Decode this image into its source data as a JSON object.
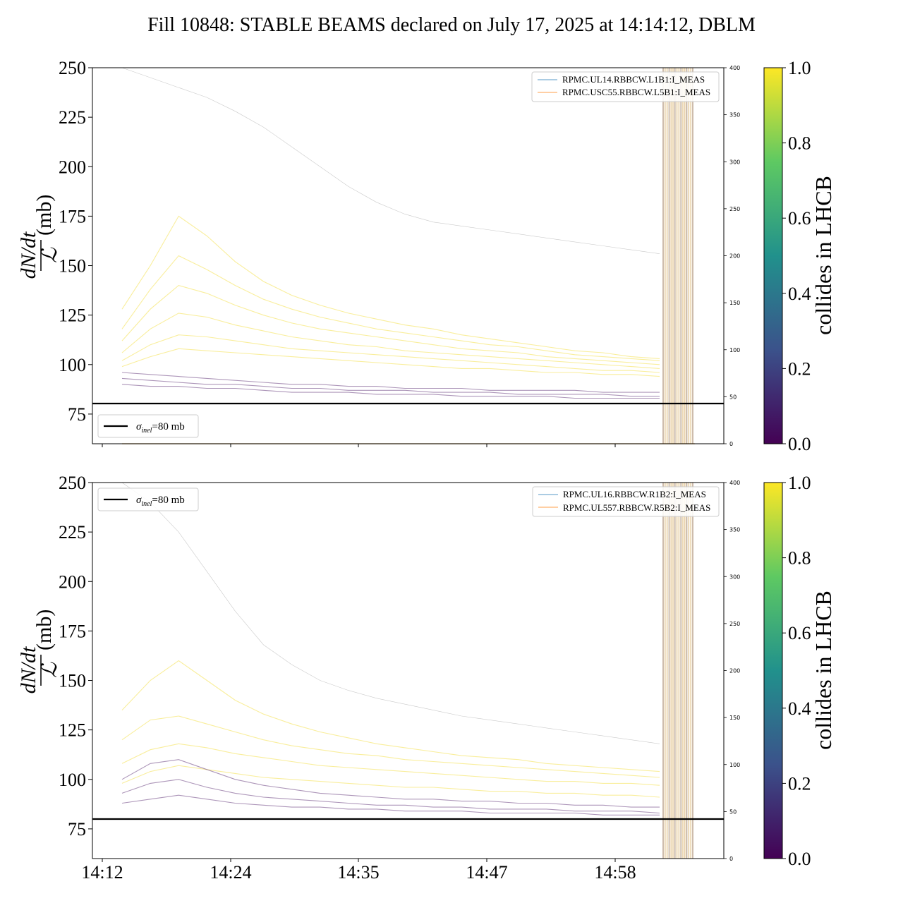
{
  "chart_data": {
    "title": "Fill 10848: STABLE BEAMS declared on July 17, 2025 at 14:14:12, DBLM",
    "x_tick_labels": [
      "14:12",
      "14:24",
      "14:35",
      "14:47",
      "14:58"
    ],
    "colorbar": {
      "label": "collides in LHCB",
      "ticks": [
        "0.0",
        "0.2",
        "0.4",
        "0.6",
        "0.8",
        "1.0"
      ],
      "colormap": [
        "#440154",
        "#3b528b",
        "#21918c",
        "#5ec962",
        "#fde725"
      ]
    },
    "panels": [
      {
        "type": "line",
        "ylabel_fraction": "dN/dt over ℒ",
        "ylabel_num": "dN/dt",
        "ylabel_den": "ℒ",
        "ylabel_unit": "(mb)",
        "ylim": [
          60,
          250
        ],
        "yticks": [
          "75",
          "100",
          "125",
          "150",
          "175",
          "200",
          "225",
          "250"
        ],
        "secondary_ylim": [
          0,
          400
        ],
        "secondary_yticks": [
          "0",
          "50",
          "100",
          "150",
          "200",
          "250",
          "300",
          "350",
          "400"
        ],
        "reference_line": {
          "value": 80,
          "label_symbol": "σ",
          "label_sub": "inel",
          "label_rest": "=80 mb"
        },
        "legend": [
          "RPMC.UL14.RBBCW.L1B1:I_MEAS",
          "RPMC.USC55.RBBCW.L5B1:I_MEAS"
        ],
        "series": [
          {
            "collides": 1,
            "values": [
              128,
              150,
              175,
              165,
              152,
              142,
              135,
              130,
              126,
              123,
              120,
              118,
              115,
              113,
              111,
              109,
              107,
              106,
              104,
              103
            ]
          },
          {
            "collides": 1,
            "values": [
              118,
              138,
              155,
              148,
              140,
              133,
              128,
              124,
              121,
              118,
              116,
              114,
              112,
              110,
              109,
              107,
              105,
              104,
              103,
              102
            ]
          },
          {
            "collides": 1,
            "values": [
              112,
              128,
              140,
              136,
              130,
              125,
              121,
              118,
              116,
              114,
              112,
              110,
              108,
              107,
              106,
              104,
              103,
              102,
              101,
              100
            ]
          },
          {
            "collides": 1,
            "values": [
              106,
              118,
              126,
              124,
              120,
              117,
              114,
              112,
              110,
              109,
              107,
              106,
              105,
              104,
              103,
              102,
              101,
              100,
              99,
              98
            ]
          },
          {
            "collides": 1,
            "values": [
              102,
              110,
              115,
              114,
              112,
              110,
              108,
              107,
              106,
              105,
              104,
              103,
              102,
              101,
              100,
              99,
              98,
              97,
              97,
              96
            ]
          },
          {
            "collides": 1,
            "values": [
              99,
              104,
              108,
              107,
              106,
              105,
              104,
              103,
              102,
              101,
              100,
              99,
              98,
              98,
              97,
              96,
              96,
              95,
              95,
              94
            ]
          },
          {
            "collides": 0,
            "values": [
              96,
              95,
              94,
              93,
              92,
              91,
              90,
              90,
              89,
              89,
              88,
              88,
              88,
              87,
              87,
              87,
              87,
              86,
              86,
              86
            ]
          },
          {
            "collides": 0,
            "values": [
              93,
              92,
              91,
              90,
              90,
              89,
              88,
              88,
              87,
              87,
              87,
              86,
              86,
              86,
              85,
              85,
              85,
              85,
              84,
              84
            ]
          },
          {
            "collides": 0,
            "values": [
              90,
              89,
              89,
              88,
              88,
              87,
              86,
              86,
              86,
              85,
              85,
              85,
              84,
              84,
              84,
              84,
              83,
              83,
              83,
              83
            ]
          },
          {
            "collides": 0.5,
            "values": [
              250,
              245,
              240,
              235,
              228,
              220,
              210,
              200,
              190,
              182,
              176,
              172,
              170,
              168,
              166,
              164,
              162,
              160,
              158,
              156
            ]
          }
        ]
      },
      {
        "type": "line",
        "ylabel_fraction": "dN/dt over ℒ",
        "ylabel_num": "dN/dt",
        "ylabel_den": "ℒ",
        "ylabel_unit": "(mb)",
        "ylim": [
          60,
          250
        ],
        "yticks": [
          "75",
          "100",
          "125",
          "150",
          "175",
          "200",
          "225",
          "250"
        ],
        "secondary_ylim": [
          0,
          400
        ],
        "secondary_yticks": [
          "0",
          "50",
          "100",
          "150",
          "200",
          "250",
          "300",
          "350",
          "400"
        ],
        "reference_line": {
          "value": 80,
          "label_symbol": "σ",
          "label_sub": "inel",
          "label_rest": "=80 mb"
        },
        "legend": [
          "RPMC.UL16.RBBCW.R1B2:I_MEAS",
          "RPMC.UL557.RBBCW.R5B2:I_MEAS"
        ],
        "series": [
          {
            "collides": 1,
            "values": [
              135,
              150,
              160,
              150,
              140,
              133,
              128,
              124,
              121,
              118,
              116,
              114,
              112,
              111,
              110,
              108,
              107,
              106,
              105,
              104
            ]
          },
          {
            "collides": 1,
            "values": [
              120,
              130,
              132,
              128,
              124,
              120,
              117,
              115,
              113,
              112,
              110,
              109,
              108,
              107,
              106,
              105,
              104,
              103,
              102,
              101
            ]
          },
          {
            "collides": 1,
            "values": [
              108,
              115,
              118,
              116,
              113,
              111,
              109,
              107,
              106,
              105,
              104,
              103,
              102,
              101,
              100,
              99,
              99,
              98,
              98,
              97
            ]
          },
          {
            "collides": 1,
            "values": [
              98,
              104,
              107,
              105,
              103,
              101,
              100,
              99,
              98,
              97,
              96,
              96,
              95,
              94,
              94,
              93,
              93,
              92,
              92,
              91
            ]
          },
          {
            "collides": 0,
            "values": [
              100,
              108,
              110,
              105,
              100,
              97,
              95,
              93,
              92,
              91,
              90,
              90,
              89,
              89,
              88,
              88,
              87,
              87,
              86,
              86
            ]
          },
          {
            "collides": 0,
            "values": [
              93,
              98,
              100,
              96,
              93,
              91,
              90,
              89,
              88,
              87,
              87,
              86,
              86,
              85,
              85,
              85,
              84,
              84,
              84,
              83
            ]
          },
          {
            "collides": 0,
            "values": [
              88,
              90,
              92,
              90,
              88,
              87,
              86,
              86,
              85,
              85,
              84,
              84,
              84,
              83,
              83,
              83,
              83,
              82,
              82,
              82
            ]
          },
          {
            "collides": 0.5,
            "values": [
              250,
              240,
              225,
              205,
              185,
              168,
              158,
              150,
              145,
              141,
              138,
              135,
              132,
              130,
              128,
              126,
              124,
              122,
              120,
              118
            ]
          }
        ]
      }
    ]
  }
}
